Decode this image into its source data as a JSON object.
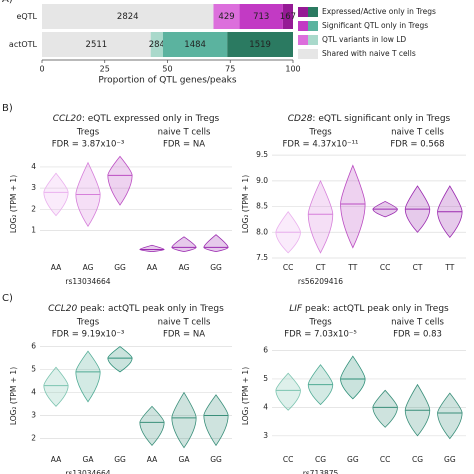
{
  "chart_data": [
    {
      "type": "bar100",
      "panel": "A)",
      "xlabel": "Proportion of QTL genes/peaks",
      "categories": [
        "eQTL",
        "actOTL"
      ],
      "xlim": [
        0,
        100
      ],
      "xticks": [
        0,
        25,
        50,
        75,
        100
      ],
      "series": [
        {
          "name": "Shared with naive T cells",
          "colors": [
            "#e6e6e6",
            "#e6e6e6"
          ],
          "values": [
            2824,
            2511
          ]
        },
        {
          "name": "QTL variants in low LD",
          "colors": [
            "#dc6fdc",
            "#a9d9cb"
          ],
          "values": [
            429,
            284
          ]
        },
        {
          "name": "Significant QTL only in Tregs",
          "colors": [
            "#c23ac4",
            "#5bb39f"
          ],
          "values": [
            713,
            1484
          ]
        },
        {
          "name": "Expressed/Active only in Tregs",
          "colors": [
            "#951a95",
            "#2b7a61"
          ],
          "values": [
            167,
            1519
          ]
        }
      ]
    },
    {
      "type": "violin",
      "panel": "B)",
      "gene": "CCL20",
      "title": ": eQTL expressed only in Tregs",
      "ylabel": "LOG₂ (TPM + 1)",
      "xlabel": "rs13034664",
      "ylim": [
        -0.3,
        4.8
      ],
      "yticks": [
        1,
        2,
        3,
        4
      ],
      "grid": true,
      "groups": [
        {
          "name": "Tregs",
          "fdr": "FDR = 3.87x10⁻³",
          "colors": [
            "#eab0ee",
            "#d67fda",
            "#bb4cc2"
          ],
          "categories": [
            "AA",
            "AG",
            "GG"
          ],
          "median": [
            2.8,
            2.7,
            3.6
          ],
          "low": [
            1.7,
            1.2,
            2.2
          ],
          "high": [
            3.7,
            4.2,
            4.5
          ]
        },
        {
          "name": "naive T cells",
          "fdr": "FDR = NA",
          "colors": [
            "#9b2bb0",
            "#9b2bb0",
            "#9b2bb0"
          ],
          "categories": [
            "AA",
            "AG",
            "GG"
          ],
          "median": [
            0.1,
            0.2,
            0.2
          ],
          "low": [
            0,
            0,
            0
          ],
          "high": [
            0.3,
            0.7,
            0.8
          ]
        }
      ]
    },
    {
      "type": "violin",
      "gene": "CD28",
      "title": ": eQTL significant only in Tregs",
      "ylabel": "LOG₂ (TPM + 1)",
      "xlabel": "rs56209416",
      "ylim": [
        7.5,
        9.6
      ],
      "yticks": [
        7.5,
        {
          "value": 8,
          "label": "8.0"
        },
        8.5,
        {
          "value": 9,
          "label": "9.0"
        },
        9.5
      ],
      "grid": true,
      "groups": [
        {
          "name": "Tregs",
          "fdr": "FDR = 4.37x10⁻¹¹",
          "colors": [
            "#eab0ee",
            "#d67fda",
            "#bb4cc2"
          ],
          "categories": [
            "CC",
            "CT",
            "TT"
          ],
          "median": [
            8.0,
            8.35,
            8.55
          ],
          "low": [
            7.6,
            7.6,
            7.7
          ],
          "high": [
            8.4,
            9.0,
            9.3
          ]
        },
        {
          "name": "naive T cells",
          "fdr": "FDR = 0.568",
          "colors": [
            "#9b2bb0",
            "#9b2bb0",
            "#9b2bb0"
          ],
          "categories": [
            "CC",
            "CT",
            "TT"
          ],
          "median": [
            8.45,
            8.45,
            8.4
          ],
          "low": [
            8.3,
            8.0,
            7.9
          ],
          "high": [
            8.6,
            8.9,
            8.9
          ]
        }
      ]
    },
    {
      "type": "violin",
      "panel": "C)",
      "gene": "CCL20",
      "title": " peak: actQTL peak only in Tregs",
      "ylabel": "LOG₂ (TPM + 1)",
      "xlabel": "rs13034664",
      "ylim": [
        1.5,
        6.2
      ],
      "yticks": [
        2,
        3,
        4,
        5,
        6
      ],
      "grid": true,
      "groups": [
        {
          "name": "Tregs",
          "fdr": "FDR = 9.19x10⁻³",
          "colors": [
            "#7cc4b0",
            "#50ab95",
            "#2d8f78"
          ],
          "categories": [
            "AA",
            "GA",
            "GG"
          ],
          "median": [
            4.3,
            4.9,
            5.5
          ],
          "low": [
            3.4,
            3.6,
            4.9
          ],
          "high": [
            5.1,
            5.8,
            6.0
          ]
        },
        {
          "name": "naive T cells",
          "fdr": "FDR = NA",
          "colors": [
            "#3a8f7a",
            "#3a8f7a",
            "#3a8f7a"
          ],
          "categories": [
            "AA",
            "GA",
            "GG"
          ],
          "median": [
            2.7,
            2.9,
            3.0
          ],
          "low": [
            1.7,
            1.6,
            1.7
          ],
          "high": [
            3.4,
            4.0,
            3.9
          ]
        }
      ]
    },
    {
      "type": "violin",
      "gene": "LIF",
      "title": " peak: actQTL peak only in Tregs",
      "ylabel": "LOG₂ (TPM + 1)",
      "xlabel": "rs713875",
      "ylim": [
        2.5,
        6.3
      ],
      "yticks": [
        3,
        4,
        5,
        6
      ],
      "grid": true,
      "groups": [
        {
          "name": "Tregs",
          "fdr": "FDR = 7.03x10⁻⁵",
          "colors": [
            "#7cc4b0",
            "#50ab95",
            "#2d8f78"
          ],
          "categories": [
            "CC",
            "CG",
            "GG"
          ],
          "median": [
            4.6,
            4.8,
            5.0
          ],
          "low": [
            3.9,
            4.1,
            4.3
          ],
          "high": [
            5.2,
            5.5,
            5.8
          ]
        },
        {
          "name": "naive T cells",
          "fdr": "FDR = 0.83",
          "colors": [
            "#3a8f7a",
            "#3a8f7a",
            "#3a8f7a"
          ],
          "categories": [
            "CC",
            "CG",
            "GG"
          ],
          "median": [
            4.0,
            3.9,
            3.8
          ],
          "low": [
            3.3,
            3.0,
            2.9
          ],
          "high": [
            4.6,
            4.8,
            4.5
          ]
        }
      ]
    }
  ]
}
